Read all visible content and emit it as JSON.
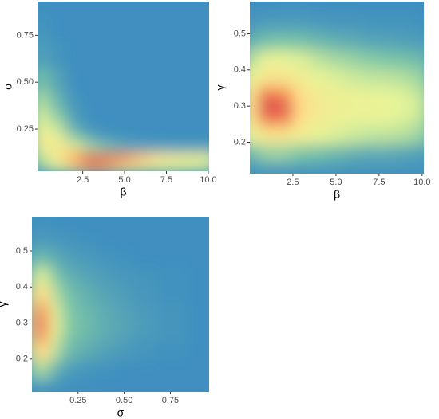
{
  "chart_data": [
    {
      "type": "density",
      "xlabel": "β",
      "ylabel": "σ",
      "xlim": [
        -0.2,
        10.05
      ],
      "ylim": [
        0.025,
        0.93
      ],
      "xticks": [
        2.5,
        {
          "value": 5,
          "label": "5.0"
        },
        7.5,
        {
          "value": 10,
          "label": "10.0"
        }
      ],
      "yticks": [
        0.25,
        {
          "value": 0.5,
          "label": "0.50"
        },
        0.75
      ],
      "x": [
        0,
        1,
        2,
        3,
        4,
        5,
        6,
        7,
        8,
        9,
        10
      ],
      "y": [
        0.05,
        0.1,
        0.15,
        0.2,
        0.25,
        0.3,
        0.4,
        0.5,
        0.65,
        0.8,
        0.93
      ],
      "z": [
        [
          0.25,
          0.4,
          0.6,
          0.75,
          0.7,
          0.6,
          0.5,
          0.45,
          0.4,
          0.38,
          0.35
        ],
        [
          0.3,
          0.5,
          0.8,
          1.0,
          0.95,
          0.85,
          0.7,
          0.6,
          0.52,
          0.48,
          0.45
        ],
        [
          0.45,
          0.55,
          0.45,
          0.3,
          0.2,
          0.12,
          0.08,
          0.06,
          0.05,
          0.05,
          0.05
        ],
        [
          0.5,
          0.45,
          0.25,
          0.1,
          0.04,
          0.02,
          0,
          0,
          0,
          0,
          0
        ],
        [
          0.45,
          0.35,
          0.12,
          0.03,
          0,
          0,
          0,
          0,
          0,
          0,
          0
        ],
        [
          0.38,
          0.25,
          0.06,
          0,
          0,
          0,
          0,
          0,
          0,
          0,
          0
        ],
        [
          0.3,
          0.15,
          0.02,
          0,
          0,
          0,
          0,
          0,
          0,
          0,
          0
        ],
        [
          0.18,
          0.08,
          0,
          0,
          0,
          0,
          0,
          0,
          0,
          0,
          0
        ],
        [
          0.06,
          0.02,
          0,
          0,
          0,
          0,
          0,
          0,
          0,
          0,
          0
        ],
        [
          0.02,
          0,
          0,
          0,
          0,
          0,
          0,
          0,
          0,
          0,
          0
        ],
        [
          0,
          0,
          0,
          0,
          0,
          0,
          0,
          0,
          0,
          0,
          0
        ]
      ]
    },
    {
      "type": "density",
      "xlabel": "β",
      "ylabel": "γ",
      "xlim": [
        0,
        10.1
      ],
      "ylim": [
        0.113,
        0.589
      ],
      "xticks": [
        2.5,
        {
          "value": 5,
          "label": "5.0"
        },
        7.5,
        {
          "value": 10,
          "label": "10.0"
        }
      ],
      "yticks": [
        0.2,
        0.3,
        0.4,
        0.5
      ],
      "x": [
        0,
        1,
        2,
        3,
        4,
        5,
        6,
        7,
        8,
        9,
        10
      ],
      "y": [
        0.12,
        0.17,
        0.22,
        0.27,
        0.3,
        0.33,
        0.38,
        0.43,
        0.48,
        0.53,
        0.58
      ],
      "z": [
        [
          0.02,
          0.03,
          0.03,
          0.02,
          0.02,
          0.02,
          0.01,
          0.01,
          0.01,
          0.01,
          0.01
        ],
        [
          0.15,
          0.25,
          0.25,
          0.2,
          0.18,
          0.15,
          0.12,
          0.1,
          0.1,
          0.08,
          0.06
        ],
        [
          0.4,
          0.55,
          0.55,
          0.48,
          0.42,
          0.38,
          0.35,
          0.33,
          0.32,
          0.3,
          0.25
        ],
        [
          0.55,
          0.85,
          0.85,
          0.6,
          0.5,
          0.45,
          0.42,
          0.42,
          0.4,
          0.38,
          0.32
        ],
        [
          0.6,
          1.0,
          0.95,
          0.62,
          0.52,
          0.48,
          0.45,
          0.45,
          0.42,
          0.4,
          0.35
        ],
        [
          0.55,
          0.85,
          0.8,
          0.6,
          0.5,
          0.46,
          0.43,
          0.42,
          0.4,
          0.38,
          0.32
        ],
        [
          0.42,
          0.55,
          0.55,
          0.48,
          0.42,
          0.38,
          0.35,
          0.33,
          0.32,
          0.3,
          0.25
        ],
        [
          0.3,
          0.42,
          0.42,
          0.38,
          0.32,
          0.28,
          0.25,
          0.22,
          0.2,
          0.18,
          0.15
        ],
        [
          0.12,
          0.18,
          0.2,
          0.18,
          0.15,
          0.12,
          0.1,
          0.08,
          0.07,
          0.06,
          0.05
        ],
        [
          0.03,
          0.05,
          0.05,
          0.05,
          0.04,
          0.03,
          0.03,
          0.02,
          0.02,
          0.02,
          0.01
        ],
        [
          0,
          0,
          0.01,
          0.01,
          0,
          0,
          0,
          0,
          0,
          0,
          0
        ]
      ]
    },
    {
      "type": "density",
      "xlabel": "σ",
      "ylabel": "γ",
      "xlim": [
        0,
        0.96
      ],
      "ylim": [
        0.109,
        0.595
      ],
      "xticks": [
        0.25,
        {
          "value": 0.5,
          "label": "0.50"
        },
        0.75
      ],
      "yticks": [
        0.2,
        0.3,
        0.4,
        0.5
      ],
      "x": [
        0,
        0.04,
        0.08,
        0.13,
        0.2,
        0.3,
        0.4,
        0.5,
        0.6,
        0.75,
        0.95
      ],
      "y": [
        0.12,
        0.17,
        0.22,
        0.27,
        0.3,
        0.33,
        0.38,
        0.43,
        0.48,
        0.53,
        0.58
      ],
      "z": [
        [
          0.02,
          0.02,
          0.02,
          0.01,
          0,
          0,
          0,
          0,
          0,
          0,
          0
        ],
        [
          0.2,
          0.3,
          0.25,
          0.12,
          0.05,
          0.02,
          0.01,
          0,
          0,
          0,
          0
        ],
        [
          0.45,
          0.65,
          0.55,
          0.3,
          0.15,
          0.1,
          0.06,
          0.04,
          0.02,
          0.01,
          0
        ],
        [
          0.6,
          0.9,
          0.7,
          0.38,
          0.2,
          0.15,
          0.1,
          0.07,
          0.04,
          0.02,
          0
        ],
        [
          0.62,
          1.0,
          0.75,
          0.4,
          0.22,
          0.16,
          0.11,
          0.08,
          0.05,
          0.02,
          0
        ],
        [
          0.6,
          0.9,
          0.7,
          0.38,
          0.2,
          0.15,
          0.1,
          0.07,
          0.04,
          0.02,
          0
        ],
        [
          0.45,
          0.65,
          0.55,
          0.3,
          0.18,
          0.12,
          0.08,
          0.05,
          0.03,
          0.01,
          0
        ],
        [
          0.3,
          0.42,
          0.35,
          0.2,
          0.12,
          0.08,
          0.05,
          0.03,
          0.02,
          0.01,
          0
        ],
        [
          0.12,
          0.18,
          0.15,
          0.1,
          0.06,
          0.04,
          0.02,
          0.01,
          0,
          0,
          0
        ],
        [
          0.03,
          0.05,
          0.04,
          0.03,
          0.02,
          0.01,
          0,
          0,
          0,
          0,
          0
        ],
        [
          0,
          0.01,
          0.01,
          0,
          0,
          0,
          0,
          0,
          0,
          0,
          0
        ]
      ]
    }
  ],
  "colorscale": [
    "#3f8fc0",
    "#7cc6a5",
    "#e6f598",
    "#fee08b",
    "#f98e52",
    "#d53e4f"
  ]
}
